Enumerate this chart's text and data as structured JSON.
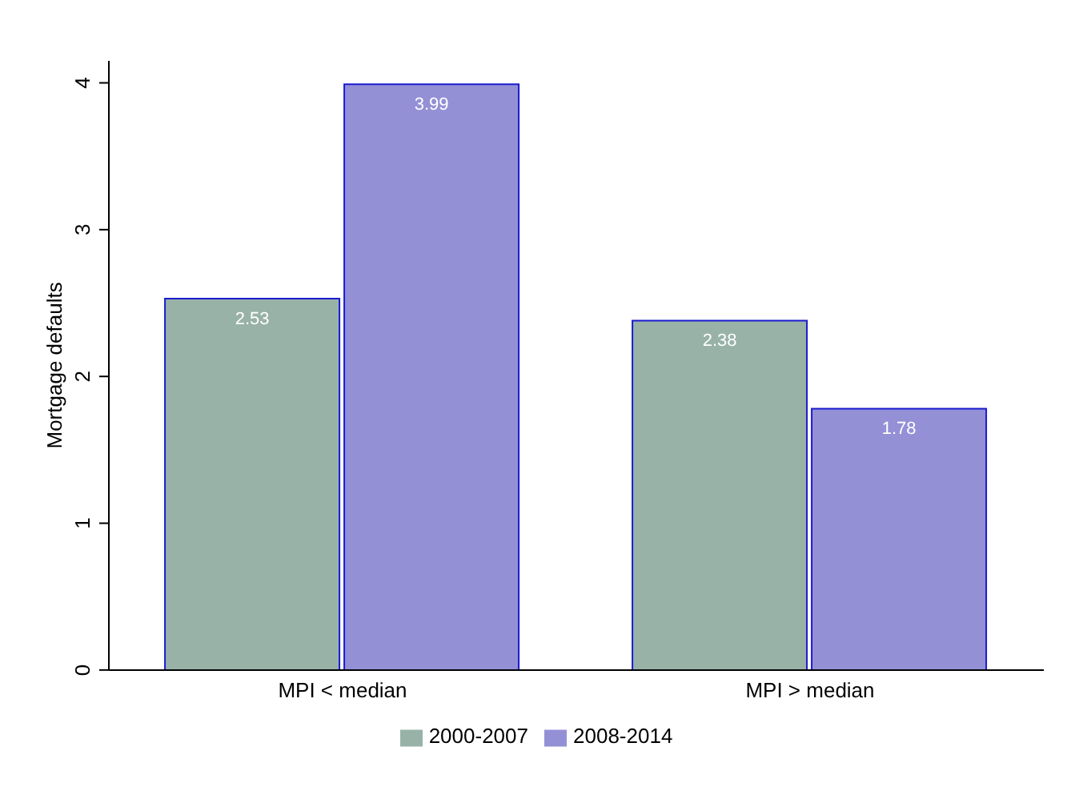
{
  "chart_data": {
    "type": "bar",
    "ylabel": "Mortgage defaults",
    "categories": [
      "MPI < median",
      "MPI > median"
    ],
    "series": [
      {
        "name": "2000-2007",
        "color": "#98b2a8",
        "values": [
          2.53,
          2.38
        ]
      },
      {
        "name": "2008-2014",
        "color": "#9490d6",
        "values": [
          3.99,
          1.78
        ]
      }
    ],
    "ylim": [
      0,
      4.15
    ],
    "yticks": [
      0,
      1,
      2,
      3,
      4
    ],
    "grid": false,
    "legend": "bottom",
    "data_labels": true
  }
}
